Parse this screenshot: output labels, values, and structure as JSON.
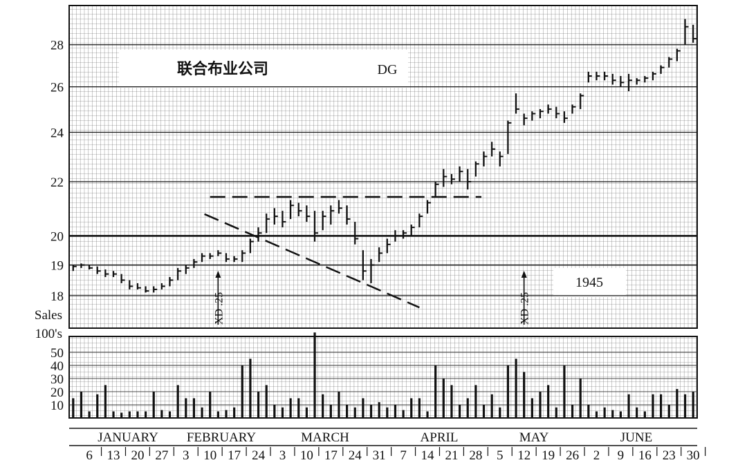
{
  "chart_data": [
    {
      "type": "hlc",
      "title": "联合布业公司",
      "symbol": "DG",
      "year": "1945",
      "log": true,
      "color": "#111111",
      "ylim": [
        17,
        30
      ],
      "yticks": [
        18,
        19,
        20,
        22,
        24,
        26,
        28
      ],
      "bold_line": 20,
      "categories": [
        null,
        null,
        "6",
        null,
        null,
        "13",
        null,
        null,
        "20",
        null,
        null,
        "27",
        null,
        null,
        "3",
        null,
        null,
        "10",
        null,
        null,
        "17",
        null,
        null,
        "24",
        null,
        null,
        "3",
        null,
        null,
        "10",
        null,
        null,
        "17",
        null,
        null,
        "24",
        null,
        null,
        "31",
        null,
        null,
        "7",
        null,
        null,
        "14",
        null,
        null,
        "21",
        null,
        null,
        "28",
        null,
        null,
        "5",
        null,
        null,
        "12",
        null,
        null,
        "19",
        null,
        null,
        "26",
        null,
        null,
        "2",
        null,
        null,
        "9",
        null,
        null,
        "16",
        null,
        null,
        "23",
        null,
        null,
        "30"
      ],
      "months": [
        "JANUARY",
        "FEBRUARY",
        "MARCH",
        "APRIL",
        "MAY",
        "JUNE"
      ],
      "high": [
        19.0,
        19.05,
        19.0,
        18.95,
        18.85,
        18.8,
        18.7,
        18.5,
        18.4,
        18.3,
        18.3,
        18.4,
        18.6,
        18.9,
        19.0,
        19.2,
        19.4,
        19.4,
        19.5,
        19.4,
        19.3,
        19.5,
        19.9,
        20.3,
        20.8,
        21.0,
        20.9,
        21.3,
        21.2,
        21.1,
        20.9,
        20.9,
        21.1,
        21.3,
        21.1,
        20.5,
        19.5,
        19.2,
        19.6,
        19.9,
        20.2,
        20.2,
        20.4,
        20.8,
        21.3,
        22.0,
        22.5,
        22.3,
        22.6,
        22.5,
        22.8,
        23.2,
        23.6,
        23.2,
        24.5,
        25.7,
        24.8,
        24.9,
        25.0,
        25.2,
        25.1,
        24.9,
        25.2,
        25.7,
        26.7,
        26.7,
        26.7,
        26.6,
        26.5,
        26.6,
        26.4,
        26.5,
        26.7,
        27.0,
        27.4,
        27.8,
        29.3,
        29.0
      ],
      "low": [
        18.8,
        18.9,
        18.85,
        18.7,
        18.6,
        18.6,
        18.4,
        18.2,
        18.2,
        18.1,
        18.1,
        18.2,
        18.3,
        18.5,
        18.7,
        18.9,
        19.1,
        19.2,
        19.3,
        19.1,
        19.1,
        19.1,
        19.4,
        19.8,
        20.1,
        20.4,
        20.3,
        20.6,
        20.7,
        20.5,
        19.8,
        20.2,
        20.4,
        20.8,
        20.4,
        19.7,
        18.5,
        18.4,
        19.1,
        19.4,
        19.8,
        19.9,
        20.0,
        20.3,
        20.8,
        21.4,
        21.8,
        21.9,
        22.0,
        21.7,
        22.2,
        22.6,
        23.0,
        22.6,
        23.1,
        24.8,
        24.3,
        24.5,
        24.6,
        24.8,
        24.6,
        24.4,
        24.8,
        25.0,
        26.2,
        26.3,
        26.3,
        26.1,
        26.0,
        25.8,
        26.1,
        26.2,
        26.3,
        26.6,
        26.9,
        27.2,
        28.0,
        28.1
      ],
      "close": [
        18.95,
        19.0,
        18.9,
        18.8,
        18.7,
        18.7,
        18.5,
        18.3,
        18.25,
        18.15,
        18.2,
        18.3,
        18.5,
        18.8,
        18.9,
        19.1,
        19.3,
        19.3,
        19.4,
        19.2,
        19.2,
        19.4,
        19.8,
        20.1,
        20.6,
        20.7,
        20.5,
        21.1,
        20.9,
        20.7,
        20.1,
        20.7,
        20.9,
        21.0,
        20.6,
        19.9,
        18.8,
        19.0,
        19.4,
        19.7,
        20.0,
        20.1,
        20.3,
        20.7,
        21.2,
        21.9,
        22.2,
        22.1,
        22.4,
        22.0,
        22.7,
        23.0,
        23.3,
        23.0,
        24.4,
        25.0,
        24.6,
        24.8,
        24.9,
        25.0,
        24.8,
        24.6,
        25.1,
        25.6,
        26.5,
        26.5,
        26.5,
        26.3,
        26.2,
        26.3,
        26.3,
        26.4,
        26.6,
        26.9,
        27.3,
        27.7,
        28.9,
        28.3
      ],
      "trendlines": [
        {
          "x": [
            17,
            50.7
          ],
          "y": [
            21.42,
            21.42
          ]
        },
        {
          "x": [
            16.3,
            43
          ],
          "y": [
            20.78,
            17.63
          ]
        }
      ],
      "annotations": [
        {
          "text": "XD .25",
          "x": 18
        },
        {
          "text": "XD .25",
          "x": 56
        }
      ]
    },
    {
      "type": "bar",
      "ylabel": [
        "Sales",
        "100's"
      ],
      "color": "#111111",
      "ylim": [
        0,
        62
      ],
      "yticks": [
        10,
        20,
        30,
        40,
        50
      ],
      "values": [
        15,
        20,
        5,
        18,
        25,
        5,
        4,
        5,
        5,
        5,
        20,
        6,
        5,
        25,
        15,
        15,
        8,
        20,
        5,
        6,
        8,
        40,
        45,
        20,
        25,
        10,
        8,
        15,
        15,
        8,
        65,
        18,
        10,
        20,
        10,
        8,
        15,
        10,
        12,
        8,
        10,
        6,
        15,
        15,
        5,
        40,
        30,
        25,
        10,
        15,
        25,
        10,
        18,
        8,
        40,
        45,
        35,
        15,
        20,
        25,
        8,
        40,
        10,
        30,
        10,
        5,
        8,
        6,
        5,
        18,
        8,
        5,
        18,
        18,
        10,
        22,
        18,
        20
      ]
    }
  ]
}
